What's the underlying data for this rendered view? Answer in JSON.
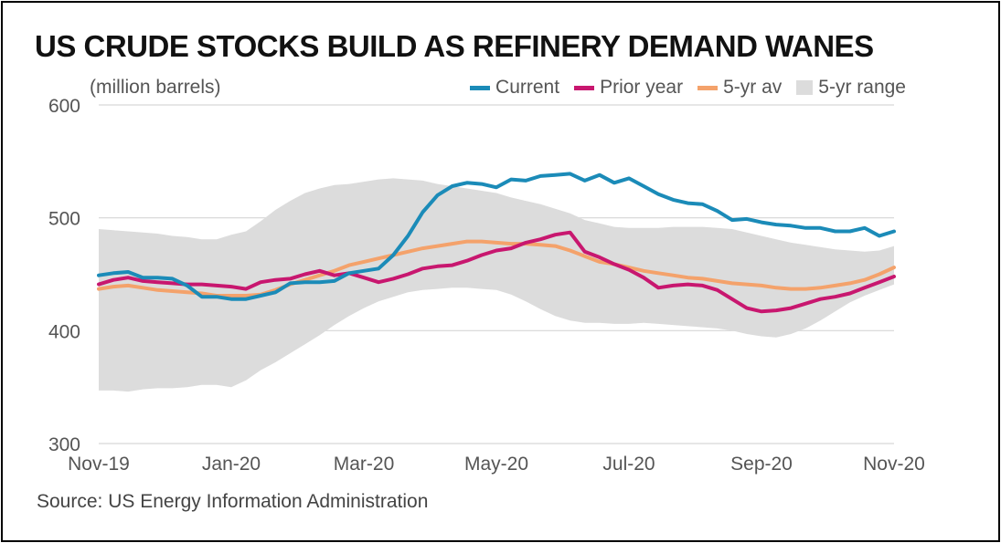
{
  "title": "US CRUDE STOCKS BUILD AS REFINERY DEMAND WANES",
  "unit_label": "(million barrels)",
  "source": "Source: US Energy Information Administration",
  "legend": {
    "current": "Current",
    "prior_year": "Prior year",
    "avg": "5-yr av",
    "range": "5-yr range"
  },
  "colors": {
    "current": "#1b8bb8",
    "prior_year": "#c8176f",
    "avg": "#f4a26b",
    "range": "#dcdcdc"
  },
  "chart_data": {
    "type": "line",
    "title": "US CRUDE STOCKS BUILD AS REFINERY DEMAND WANES",
    "ylabel": "(million barrels)",
    "ylim": [
      300,
      600
    ],
    "yticks": [
      300,
      400,
      500,
      600
    ],
    "x_tick_labels": [
      "Nov-19",
      "Jan-20",
      "Mar-20",
      "May-20",
      "Jul-20",
      "Sep-20",
      "Nov-20"
    ],
    "x_tick_weeks": [
      0,
      9,
      18,
      27,
      36,
      45,
      54
    ],
    "x_range": [
      0,
      54
    ],
    "weeks": [
      0,
      1,
      2,
      3,
      4,
      5,
      6,
      7,
      8,
      9,
      10,
      11,
      12,
      13,
      14,
      15,
      16,
      17,
      18,
      19,
      20,
      21,
      22,
      23,
      24,
      25,
      26,
      27,
      28,
      29,
      30,
      31,
      32,
      33,
      34,
      35,
      36,
      37,
      38,
      39,
      40,
      41,
      42,
      43,
      44,
      45,
      46,
      47,
      48,
      49,
      50,
      51,
      52,
      53,
      54
    ],
    "series": [
      {
        "name": "Current",
        "values": [
          449,
          451,
          452,
          447,
          447,
          446,
          440,
          430,
          430,
          428,
          428,
          431,
          434,
          442,
          443,
          443,
          444,
          451,
          453,
          455,
          467,
          484,
          505,
          520,
          528,
          531,
          530,
          527,
          534,
          533,
          537,
          538,
          539,
          533,
          538,
          531,
          535,
          528,
          521,
          516,
          513,
          512,
          506,
          498,
          499,
          496,
          494,
          493,
          491,
          491,
          488,
          488,
          491,
          484,
          488
        ]
      },
      {
        "name": "Prior year",
        "values": [
          441,
          445,
          447,
          444,
          443,
          442,
          441,
          441,
          440,
          439,
          437,
          443,
          445,
          446,
          450,
          453,
          449,
          451,
          447,
          443,
          446,
          450,
          455,
          457,
          458,
          462,
          467,
          471,
          473,
          478,
          481,
          485,
          487,
          470,
          465,
          459,
          454,
          447,
          438,
          440,
          441,
          440,
          436,
          428,
          420,
          417,
          418,
          420,
          424,
          428,
          430,
          433,
          438,
          443,
          448
        ]
      },
      {
        "name": "5-yr av",
        "values": [
          437,
          439,
          440,
          438,
          436,
          435,
          434,
          433,
          431,
          431,
          431,
          432,
          436,
          441,
          445,
          449,
          453,
          458,
          461,
          464,
          467,
          470,
          473,
          475,
          477,
          479,
          479,
          478,
          477,
          477,
          476,
          475,
          471,
          466,
          461,
          459,
          456,
          453,
          451,
          449,
          447,
          446,
          444,
          442,
          441,
          440,
          438,
          437,
          437,
          438,
          440,
          442,
          445,
          450,
          456
        ]
      },
      {
        "name": "5-yr range",
        "values_high": [
          490,
          489,
          488,
          487,
          486,
          484,
          483,
          481,
          481,
          485,
          488,
          497,
          507,
          515,
          522,
          526,
          529,
          530,
          532,
          534,
          535,
          534,
          533,
          530,
          528,
          526,
          524,
          522,
          518,
          515,
          512,
          508,
          504,
          498,
          495,
          492,
          491,
          491,
          491,
          492,
          492,
          492,
          491,
          490,
          487,
          484,
          481,
          478,
          476,
          474,
          472,
          471,
          470,
          471,
          475
        ],
        "values_low": [
          347,
          347,
          346,
          348,
          349,
          349,
          350,
          352,
          352,
          350,
          356,
          365,
          372,
          380,
          388,
          396,
          405,
          413,
          420,
          426,
          430,
          434,
          436,
          437,
          438,
          438,
          437,
          436,
          432,
          426,
          419,
          413,
          409,
          407,
          407,
          406,
          406,
          407,
          406,
          405,
          404,
          403,
          402,
          400,
          397,
          395,
          394,
          397,
          402,
          409,
          417,
          425,
          431,
          436,
          441
        ]
      }
    ]
  }
}
